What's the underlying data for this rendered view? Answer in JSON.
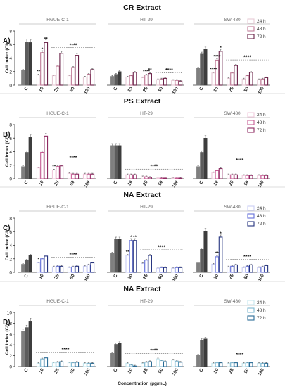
{
  "chart_data": [
    {
      "panel_letter": "A)",
      "title": "CR Extract",
      "type": "bar",
      "ylabel": "Cell Index (CI)",
      "ylim": [
        0,
        8
      ],
      "yticks": [
        0,
        2,
        4,
        6,
        8
      ],
      "categories": [
        "C",
        "10",
        "25",
        "50",
        "100"
      ],
      "groups": [
        {
          "name": "HGUE-C-1",
          "series": [
            {
              "name": "24 h",
              "values": [
                2.2,
                1.5,
                1.4,
                1.4,
                1.2
              ]
            },
            {
              "name": "48 h",
              "values": [
                6.4,
                4.8,
                2.8,
                2.6,
                1.6
              ]
            },
            {
              "name": "72 h",
              "values": [
                6.3,
                6.3,
                4.7,
                4.4,
                2.3
              ]
            }
          ],
          "annotations": [
            {
              "text": "**",
              "category": 1,
              "series": 0
            },
            {
              "text": "*",
              "category": 1,
              "series": 1
            },
            {
              "text": "**",
              "category": 1,
              "series": 2
            },
            {
              "text": "****",
              "from": 2,
              "to": 4
            }
          ]
        },
        {
          "name": "HT-29",
          "series": [
            {
              "name": "24 h",
              "values": [
                1.3,
                1.2,
                1.1,
                0.8,
                0.7
              ]
            },
            {
              "name": "48 h",
              "values": [
                1.6,
                1.4,
                1.5,
                0.9,
                0.7
              ]
            },
            {
              "name": "72 h",
              "values": [
                2.0,
                1.9,
                1.7,
                1.0,
                0.6
              ]
            }
          ],
          "annotations": [
            {
              "text": "****",
              "category": 2,
              "series": 1
            },
            {
              "text": "**",
              "category": 2,
              "series": 2
            },
            {
              "text": "****",
              "from": 3,
              "to": 4
            }
          ]
        },
        {
          "name": "SW-480",
          "series": [
            {
              "name": "24 h",
              "values": [
                2.5,
                1.8,
                1.0,
                0.9,
                0.8
              ]
            },
            {
              "name": "48 h",
              "values": [
                4.6,
                3.7,
                1.8,
                1.4,
                0.9
              ]
            },
            {
              "name": "72 h",
              "values": [
                5.3,
                5.0,
                2.9,
                1.9,
                1.1
              ]
            }
          ],
          "annotations": [
            {
              "text": "****",
              "category": 1,
              "series": 0
            },
            {
              "text": "****",
              "category": 1,
              "series": 1
            },
            {
              "text": "*",
              "category": 1,
              "series": 2
            },
            {
              "text": "****",
              "from": 2,
              "to": 4
            }
          ]
        }
      ],
      "legend": [
        "24 h",
        "48 h",
        "72 h"
      ]
    },
    {
      "panel_letter": "B)",
      "title": "PS Extract",
      "type": "bar",
      "ylabel": "Cell Index (CI)",
      "ylim": [
        0,
        8
      ],
      "yticks": [
        0,
        2,
        4,
        6,
        8
      ],
      "categories": [
        "C",
        "10",
        "25",
        "50",
        "100"
      ],
      "groups": [
        {
          "name": "HGUE-C-1",
          "series": [
            {
              "name": "24 h",
              "values": [
                1.8,
                1.6,
                1.3,
                0.8,
                0.7
              ]
            },
            {
              "name": "48 h",
              "values": [
                3.9,
                3.9,
                1.8,
                0.7,
                0.7
              ]
            },
            {
              "name": "72 h",
              "values": [
                6.1,
                6.3,
                1.9,
                0.7,
                0.7
              ]
            }
          ],
          "annotations": [
            {
              "text": "**",
              "category": 2,
              "series": 0
            },
            {
              "text": "****",
              "from": 2,
              "to": 4
            }
          ]
        },
        {
          "name": "HT-29",
          "series": [
            {
              "name": "24 h",
              "values": [
                4.9,
                0.6,
                0.3,
                0.1,
                0.1
              ]
            },
            {
              "name": "48 h",
              "values": [
                4.9,
                0.6,
                0.3,
                0.1,
                0.1
              ]
            },
            {
              "name": "72 h",
              "values": [
                4.9,
                0.6,
                0.2,
                0.1,
                0.1
              ]
            }
          ],
          "annotations": [
            {
              "text": "****",
              "from": 1,
              "to": 4
            }
          ]
        },
        {
          "name": "SW-480",
          "series": [
            {
              "name": "24 h",
              "values": [
                1.8,
                0.9,
                0.6,
                0.5,
                0.5
              ]
            },
            {
              "name": "48 h",
              "values": [
                3.9,
                1.2,
                0.6,
                0.5,
                0.5
              ]
            },
            {
              "name": "72 h",
              "values": [
                6.0,
                1.5,
                0.6,
                0.5,
                0.5
              ]
            }
          ],
          "annotations": [
            {
              "text": "****",
              "from": 1,
              "to": 4
            }
          ]
        }
      ],
      "legend": [
        "24 h",
        "48 h",
        "72 h"
      ]
    },
    {
      "panel_letter": "C)",
      "title": "NA Extract",
      "type": "bar",
      "ylabel": "Cell Index (CI)",
      "ylim": [
        0,
        8
      ],
      "yticks": [
        0,
        2,
        4,
        6,
        8
      ],
      "categories": [
        "C",
        "10",
        "25",
        "50",
        "100"
      ],
      "groups": [
        {
          "name": "HGUE-C-1",
          "series": [
            {
              "name": "24 h",
              "values": [
                1.2,
                1.4,
                0.8,
                0.7,
                0.9
              ]
            },
            {
              "name": "48 h",
              "values": [
                1.8,
                2.0,
                0.9,
                0.8,
                1.1
              ]
            },
            {
              "name": "72 h",
              "values": [
                2.5,
                2.4,
                0.9,
                0.9,
                1.4
              ]
            }
          ],
          "annotations": [
            {
              "text": "*",
              "category": 1,
              "series": 0
            },
            {
              "text": "****",
              "from": 2,
              "to": 4
            }
          ]
        },
        {
          "name": "HT-29",
          "series": [
            {
              "name": "24 h",
              "values": [
                2.8,
                2.5,
                1.3,
                0.6,
                0.6
              ]
            },
            {
              "name": "48 h",
              "values": [
                4.9,
                4.7,
                1.8,
                0.7,
                0.7
              ]
            },
            {
              "name": "72 h",
              "values": [
                4.9,
                4.7,
                2.5,
                0.7,
                0.7
              ]
            }
          ],
          "annotations": [
            {
              "text": "**",
              "category": 1,
              "series": 0
            },
            {
              "text": "*",
              "category": 1,
              "series": 1
            },
            {
              "text": "**",
              "category": 1,
              "series": 2
            },
            {
              "text": "****",
              "from": 2,
              "to": 4
            }
          ]
        },
        {
          "name": "SW-480",
          "series": [
            {
              "name": "24 h",
              "values": [
                1.4,
                1.2,
                0.8,
                0.7,
                0.7
              ]
            },
            {
              "name": "48 h",
              "values": [
                3.4,
                2.3,
                0.9,
                0.9,
                0.8
              ]
            },
            {
              "name": "72 h",
              "values": [
                6.1,
                5.2,
                1.1,
                1.1,
                1.0
              ]
            }
          ],
          "annotations": [
            {
              "text": "**",
              "category": 1,
              "series": 1
            },
            {
              "text": "*",
              "category": 1,
              "series": 2
            },
            {
              "text": "****",
              "from": 2,
              "to": 4
            }
          ]
        }
      ],
      "legend": [
        "24 h",
        "48 h",
        "72 h"
      ]
    },
    {
      "panel_letter": "D)",
      "title": "NA Extract",
      "type": "bar",
      "ylabel": "Cell Index (CI)",
      "xlabel": "Concentration (µg/mL)",
      "ylim": [
        0,
        10
      ],
      "yticks": [
        0,
        2,
        4,
        6,
        8,
        10
      ],
      "categories": [
        "C",
        "10",
        "25",
        "50",
        "100"
      ],
      "groups": [
        {
          "name": "HGUE-C-1",
          "series": [
            {
              "name": "24 h",
              "values": [
                6.5,
                0.6,
                0.7,
                0.7,
                0.6
              ]
            },
            {
              "name": "48 h",
              "values": [
                7.2,
                1.4,
                0.8,
                0.7,
                0.6
              ]
            },
            {
              "name": "72 h",
              "values": [
                8.4,
                1.6,
                0.9,
                0.8,
                0.6
              ]
            }
          ],
          "annotations": [
            {
              "text": "****",
              "from": 1,
              "to": 4
            }
          ]
        },
        {
          "name": "HT-29",
          "series": [
            {
              "name": "24 h",
              "values": [
                2.5,
                0.6,
                0.6,
                1.4,
                1.2
              ]
            },
            {
              "name": "48 h",
              "values": [
                4.1,
                0.3,
                0.8,
                1.1,
                1.0
              ]
            },
            {
              "name": "72 h",
              "values": [
                4.3,
                0.1,
                0.9,
                0.9,
                0.8
              ]
            }
          ],
          "annotations": [
            {
              "text": "****",
              "from": 1,
              "to": 4
            }
          ]
        },
        {
          "name": "SW-480",
          "series": [
            {
              "name": "24 h",
              "values": [
                2.1,
                0.6,
                0.6,
                0.6,
                0.6
              ]
            },
            {
              "name": "48 h",
              "values": [
                4.9,
                0.7,
                0.7,
                0.7,
                0.6
              ]
            },
            {
              "name": "72 h",
              "values": [
                5.1,
                0.7,
                0.7,
                0.7,
                0.6
              ]
            }
          ],
          "annotations": [
            {
              "text": "****",
              "from": 1,
              "to": 4
            }
          ]
        }
      ],
      "legend": [
        "24 h",
        "48 h",
        "72 h"
      ]
    }
  ],
  "styles": {
    "control_colors": [
      "#7f7f7f",
      "#5c5c5c",
      "#3d3d3d"
    ],
    "panel_colors": [
      [
        "#e6cad5",
        "#c07a96",
        "#6a2147"
      ],
      [
        "#f0c9dc",
        "#c65c94",
        "#8e2a62"
      ],
      [
        "#c9cdf4",
        "#6470d8",
        "#23317e"
      ],
      [
        "#c5e6ee",
        "#7fb7d0",
        "#2a6c96"
      ]
    ],
    "axis_color": "#333333",
    "separator_color": "#bbbbbb"
  }
}
